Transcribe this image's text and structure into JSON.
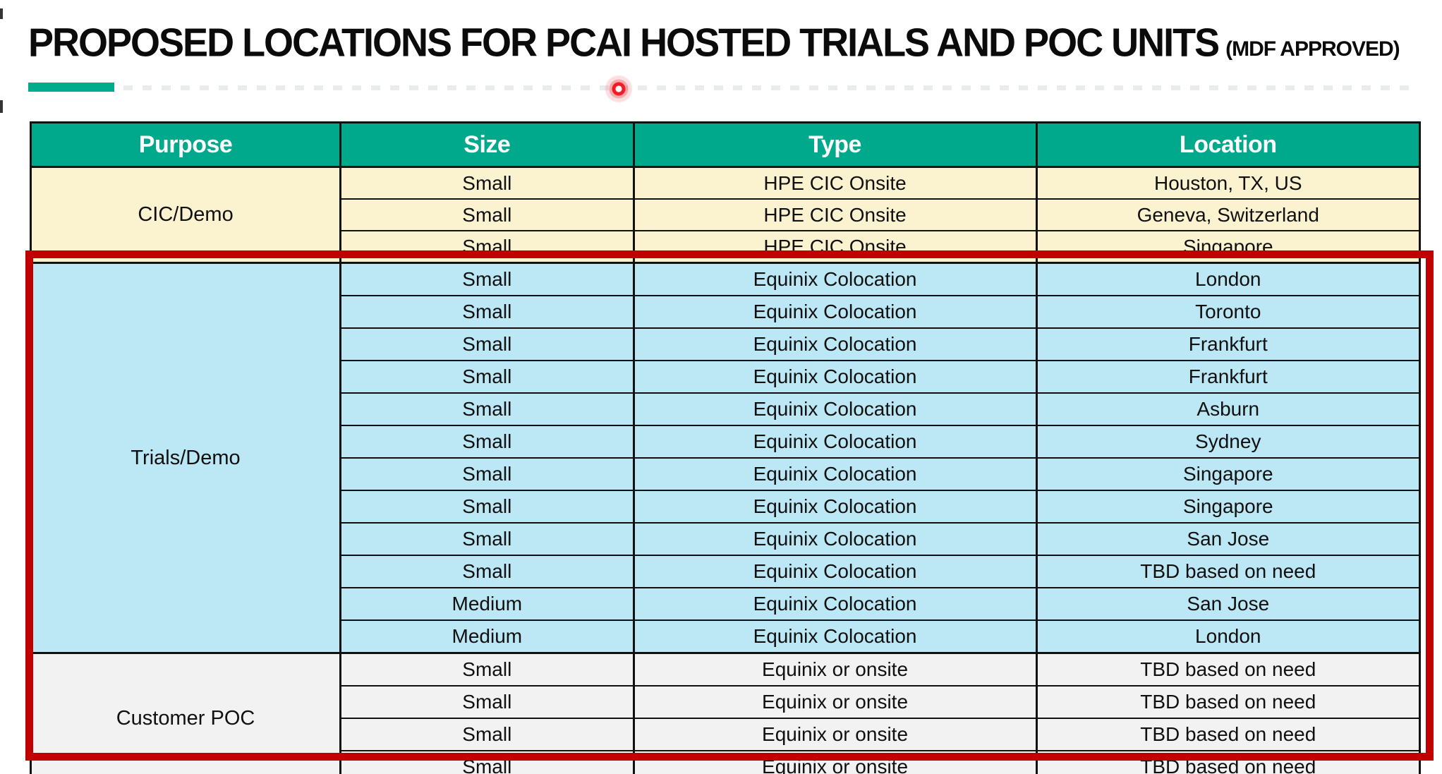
{
  "page": {
    "title_main": "PROPOSED LOCATIONS FOR PCAI HOSTED TRIALS AND POC UNITS",
    "title_suffix": "(MDF APPROVED)"
  },
  "colors": {
    "header_green": "#00A98B",
    "accent_underline": "#01AC8C",
    "section_cic_bg": "#FBF2D0",
    "section_trials_bg": "#BCE8F5",
    "section_poc_bg": "#F2F2F2",
    "highlight_border": "#C00000",
    "laser_dot": "#EE1C25"
  },
  "table": {
    "columns": [
      "Purpose",
      "Size",
      "Type",
      "Location"
    ],
    "sections": [
      {
        "purpose": "CIC/Demo",
        "color_key": "section_cic_bg",
        "rows": [
          [
            "Small",
            "HPE CIC Onsite",
            "Houston, TX, US"
          ],
          [
            "Small",
            "HPE CIC Onsite",
            "Geneva, Switzerland"
          ],
          [
            "Small",
            "HPE CIC Onsite",
            "Singapore"
          ]
        ]
      },
      {
        "purpose": "Trials/Demo",
        "color_key": "section_trials_bg",
        "rows": [
          [
            "Small",
            "Equinix Colocation",
            "London"
          ],
          [
            "Small",
            "Equinix Colocation",
            "Toronto"
          ],
          [
            "Small",
            "Equinix Colocation",
            "Frankfurt"
          ],
          [
            "Small",
            "Equinix Colocation",
            "Frankfurt"
          ],
          [
            "Small",
            "Equinix Colocation",
            "Asburn"
          ],
          [
            "Small",
            "Equinix Colocation",
            "Sydney"
          ],
          [
            "Small",
            "Equinix Colocation",
            "Singapore"
          ],
          [
            "Small",
            "Equinix Colocation",
            "Singapore"
          ],
          [
            "Small",
            "Equinix Colocation",
            "San Jose"
          ],
          [
            "Small",
            "Equinix Colocation",
            "TBD based on need"
          ],
          [
            "Medium",
            "Equinix Colocation",
            "San Jose"
          ],
          [
            "Medium",
            "Equinix Colocation",
            "London"
          ]
        ]
      },
      {
        "purpose": "Customer POC",
        "color_key": "section_poc_bg",
        "rows": [
          [
            "Small",
            "Equinix or onsite",
            "TBD based on need"
          ],
          [
            "Small",
            "Equinix or onsite",
            "TBD based on need"
          ],
          [
            "Small",
            "Equinix or onsite",
            "TBD based on need"
          ],
          [
            "Small",
            "Equinix or onsite",
            "TBD based on need"
          ]
        ]
      }
    ]
  },
  "annotations": {
    "highlighted_sections": [
      "Trials/Demo",
      "Customer POC"
    ]
  }
}
